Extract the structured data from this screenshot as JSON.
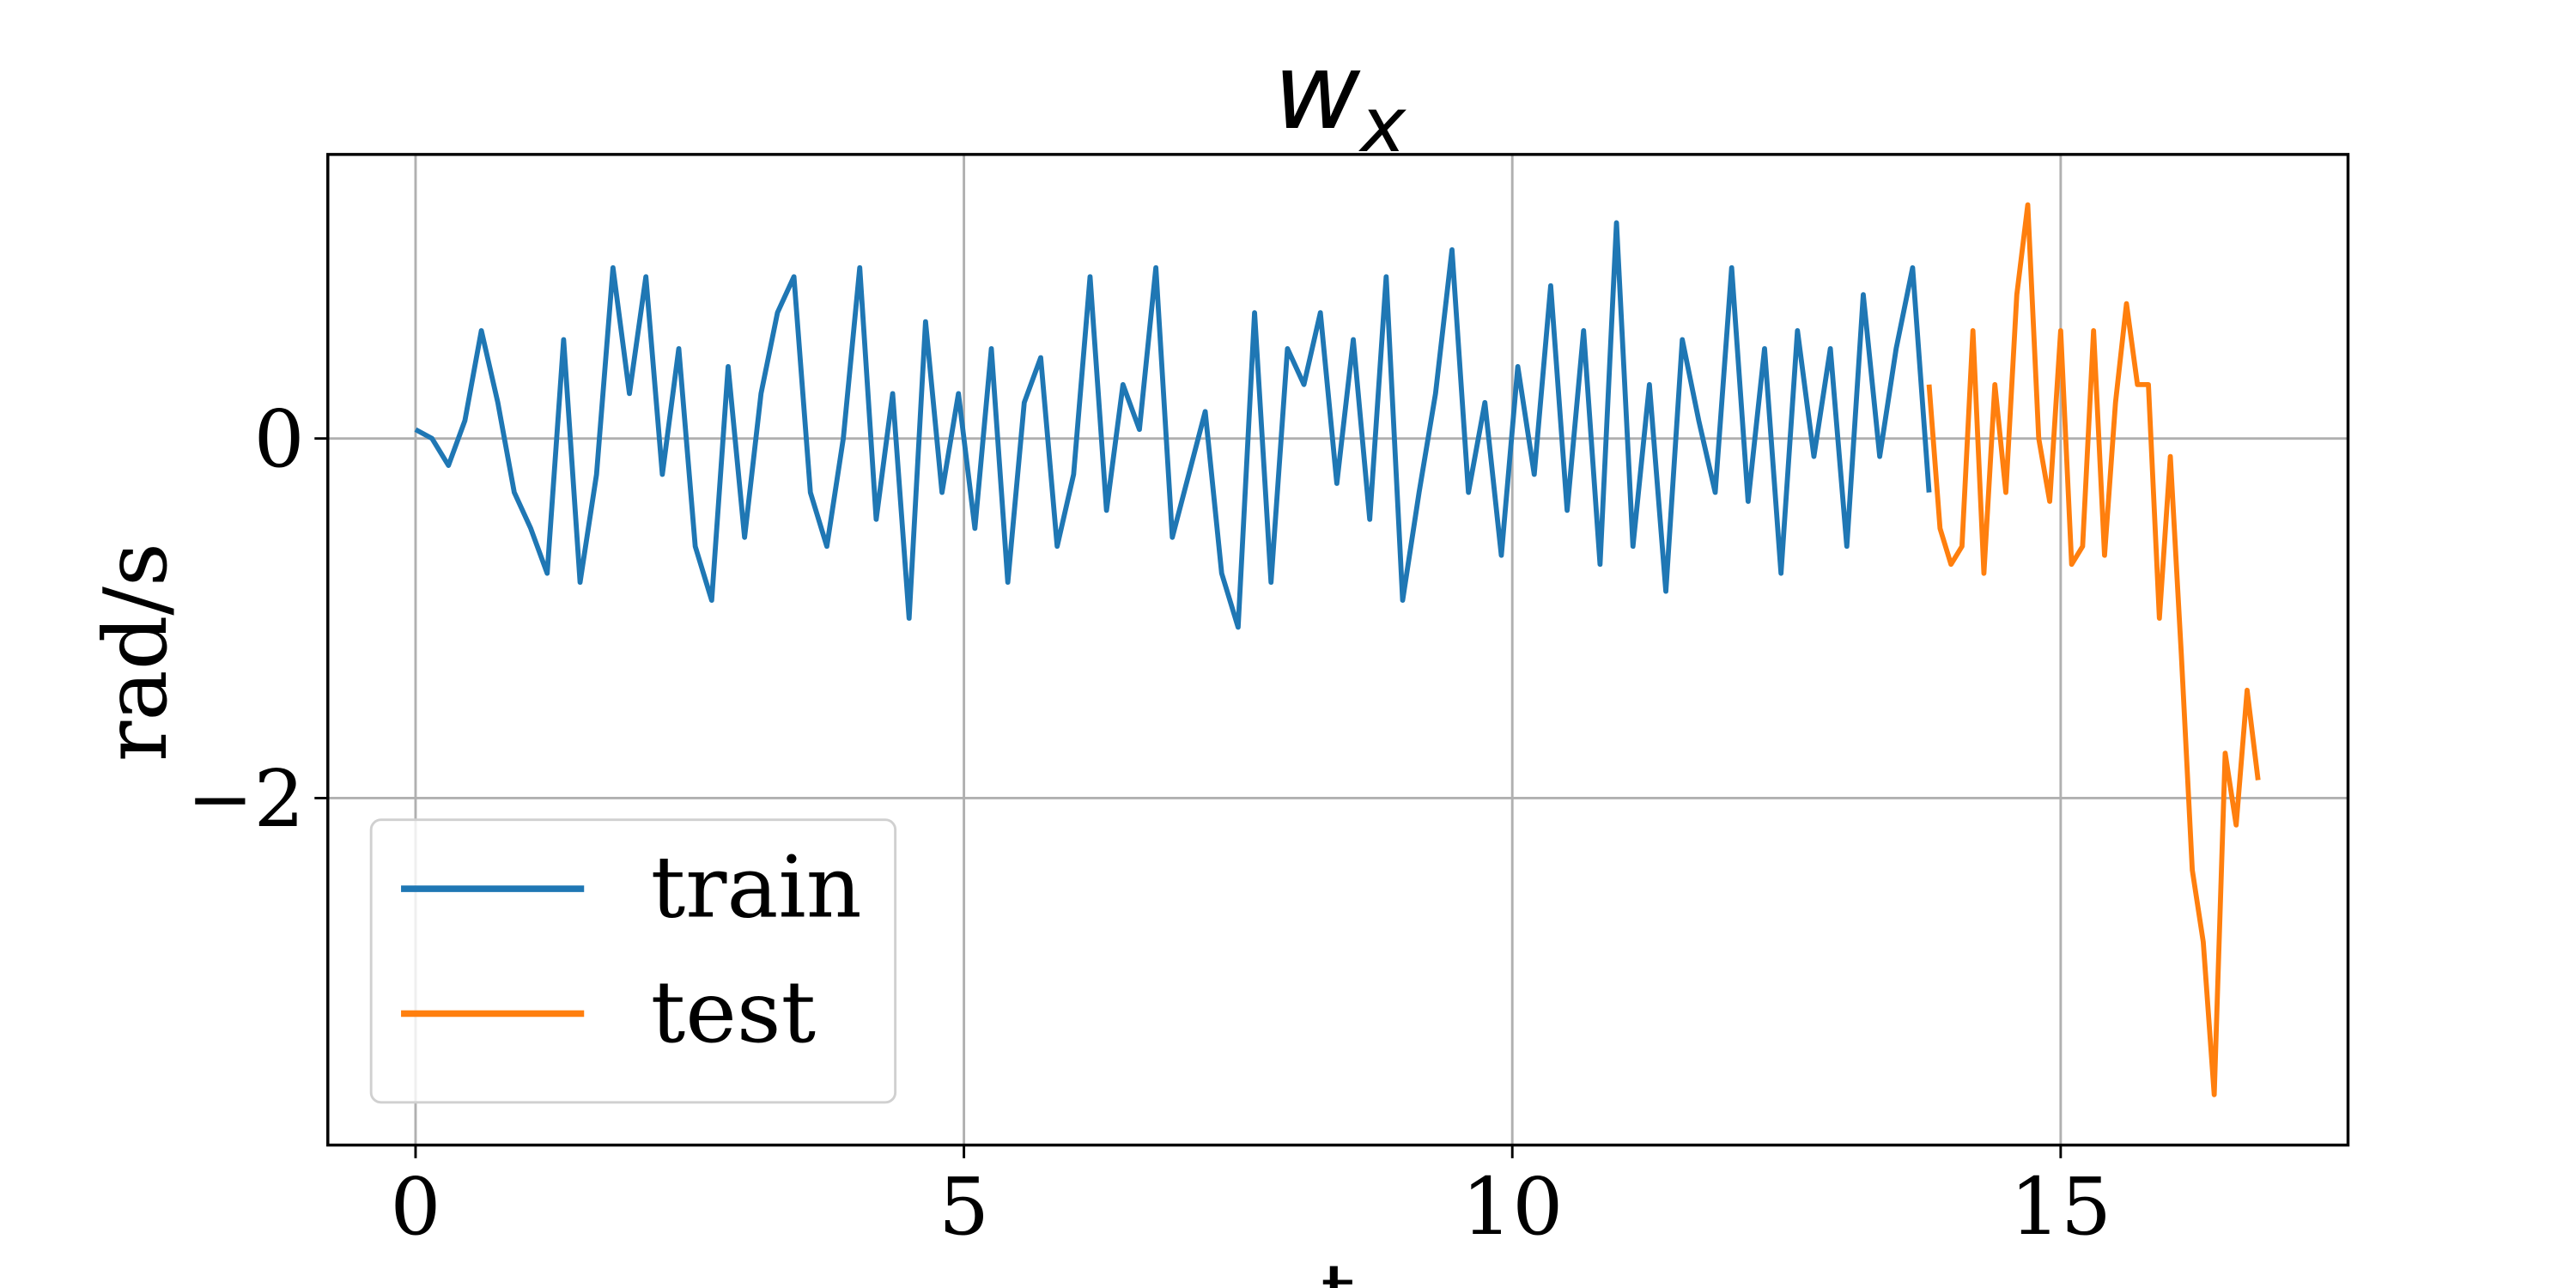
{
  "chart_data": {
    "type": "line",
    "title": "w",
    "title_subscript": "x",
    "xlabel": "t",
    "ylabel": "rad/s",
    "xlim": [
      -0.8,
      17.62
    ],
    "ylim": [
      -3.93,
      1.58
    ],
    "xticks": [
      0,
      5,
      10,
      15
    ],
    "yticks": [
      {
        "value": -2,
        "label": "−2"
      },
      0
    ],
    "grid": true,
    "legend": "lower left",
    "series": [
      {
        "name": "train",
        "color": "#1f77b4",
        "x": [
          0,
          0.15,
          0.3,
          0.45,
          0.6,
          0.75,
          0.9,
          1.05,
          1.2,
          1.35,
          1.5,
          1.65,
          1.8,
          1.95,
          2.1,
          2.25,
          2.4,
          2.55,
          2.7,
          2.85,
          3.0,
          3.15,
          3.3,
          3.45,
          3.6,
          3.75,
          3.9,
          4.05,
          4.2,
          4.35,
          4.5,
          4.65,
          4.8,
          4.95,
          5.1,
          5.25,
          5.4,
          5.55,
          5.7,
          5.85,
          6.0,
          6.15,
          6.3,
          6.45,
          6.6,
          6.75,
          6.9,
          7.05,
          7.2,
          7.35,
          7.5,
          7.65,
          7.8,
          7.95,
          8.1,
          8.25,
          8.4,
          8.55,
          8.7,
          8.85,
          9.0,
          9.15,
          9.3,
          9.45,
          9.6,
          9.75,
          9.9,
          10.05,
          10.2,
          10.35,
          10.5,
          10.65,
          10.8,
          10.95,
          11.1,
          11.25,
          11.4,
          11.55,
          11.7,
          11.85,
          12.0,
          12.15,
          12.3,
          12.45,
          12.6,
          12.75,
          12.9,
          13.05,
          13.2,
          13.35,
          13.5,
          13.65,
          13.8
        ],
        "values": [
          0.05,
          0.0,
          -0.15,
          0.1,
          0.6,
          0.2,
          -0.3,
          -0.5,
          -0.75,
          0.55,
          -0.8,
          -0.2,
          0.95,
          0.25,
          0.9,
          -0.2,
          0.5,
          -0.6,
          -0.9,
          0.4,
          -0.55,
          0.25,
          0.7,
          0.9,
          -0.3,
          -0.6,
          0.0,
          0.95,
          -0.45,
          0.25,
          -1.0,
          0.65,
          -0.3,
          0.25,
          -0.5,
          0.5,
          -0.8,
          0.2,
          0.45,
          -0.6,
          -0.2,
          0.9,
          -0.4,
          0.3,
          0.05,
          0.95,
          -0.55,
          -0.2,
          0.15,
          -0.75,
          -1.05,
          0.7,
          -0.8,
          0.5,
          0.3,
          0.7,
          -0.25,
          0.55,
          -0.45,
          0.9,
          -0.9,
          -0.3,
          0.25,
          1.05,
          -0.3,
          0.2,
          -0.65,
          0.4,
          -0.2,
          0.85,
          -0.4,
          0.6,
          -0.7,
          1.2,
          -0.6,
          0.3,
          -0.85,
          0.55,
          0.1,
          -0.3,
          0.95,
          -0.35,
          0.5,
          -0.75,
          0.6,
          -0.1,
          0.5,
          -0.6,
          0.8,
          -0.1,
          0.5,
          0.95,
          -0.3
        ]
      },
      {
        "name": "test",
        "color": "#ff7f0e",
        "x": [
          13.8,
          13.9,
          14.0,
          14.1,
          14.2,
          14.3,
          14.4,
          14.5,
          14.6,
          14.7,
          14.8,
          14.9,
          15.0,
          15.1,
          15.2,
          15.3,
          15.4,
          15.5,
          15.6,
          15.7,
          15.8,
          15.9,
          16.0,
          16.1,
          16.2,
          16.3,
          16.4,
          16.5,
          16.6,
          16.7,
          16.8
        ],
        "values": [
          0.3,
          -0.5,
          -0.7,
          -0.6,
          0.6,
          -0.75,
          0.3,
          -0.3,
          0.8,
          1.3,
          0.0,
          -0.35,
          0.6,
          -0.7,
          -0.6,
          0.6,
          -0.65,
          0.2,
          0.75,
          0.3,
          0.3,
          -1.0,
          -0.1,
          -1.2,
          -2.4,
          -2.8,
          -3.65,
          -1.75,
          -2.15,
          -1.4,
          -1.9
        ]
      }
    ]
  }
}
